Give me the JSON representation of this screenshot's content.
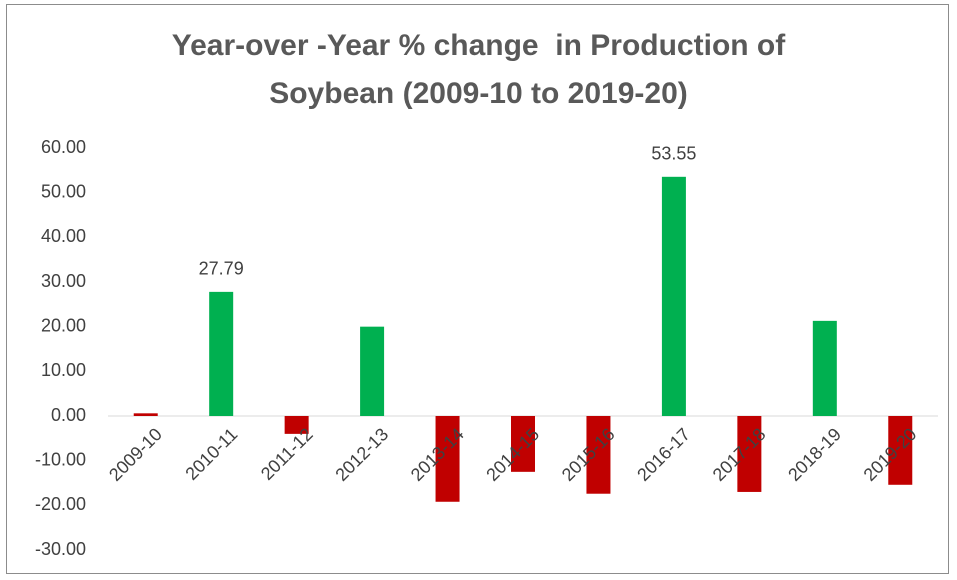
{
  "chart_data": {
    "type": "bar",
    "title": "Year-over -Year % change  in Production of Soybean (2009-10 to 2019-20)",
    "categories": [
      "2009-10",
      "2010-11",
      "2011-12",
      "2012-13",
      "2013-14",
      "2014-15",
      "2015-16",
      "2016-17",
      "2017-18",
      "2018-19",
      "2019-20"
    ],
    "values": [
      0.6,
      27.79,
      -4.0,
      20.0,
      -19.2,
      -12.5,
      -17.4,
      53.55,
      -17.0,
      21.3,
      -15.4
    ],
    "value_labels": [
      null,
      "27.79",
      null,
      null,
      null,
      null,
      null,
      "53.55",
      null,
      null,
      null
    ],
    "colors": [
      "#c00000",
      "#00b050",
      "#c00000",
      "#00b050",
      "#c00000",
      "#c00000",
      "#c00000",
      "#00b050",
      "#c00000",
      "#00b050",
      "#c00000"
    ],
    "ylim": [
      -30,
      60
    ],
    "yticks": [
      {
        "value": -30,
        "label": "-30.00"
      },
      {
        "value": -20,
        "label": "-20.00"
      },
      {
        "value": -10,
        "label": "-10.00"
      },
      {
        "value": 0,
        "label": "0.00"
      },
      {
        "value": 10,
        "label": "10.00"
      },
      {
        "value": 20,
        "label": "20.00"
      },
      {
        "value": 30,
        "label": "30.00"
      },
      {
        "value": 40,
        "label": "40.00"
      },
      {
        "value": 50,
        "label": "50.00"
      },
      {
        "value": 60,
        "label": "60.00"
      }
    ],
    "grid": false
  }
}
